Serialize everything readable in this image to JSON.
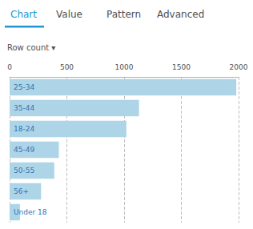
{
  "chart_data": {
    "type": "bar",
    "orientation": "horizontal",
    "annotations": [
      "Chart",
      "Value",
      "Pattern",
      "Advanced",
      "Row count ▾"
    ],
    "categories": [
      "25-34",
      "35-44",
      "18-24",
      "45-49",
      "50-55",
      "56+",
      "Under 18"
    ],
    "values": [
      1980,
      1130,
      1020,
      430,
      390,
      275,
      90
    ],
    "color": "#aed4e8",
    "xlim": [
      0,
      2000
    ],
    "xticks": [
      0,
      500,
      1000,
      1500,
      2000
    ],
    "grid": true,
    "tick_labels": "x"
  }
}
